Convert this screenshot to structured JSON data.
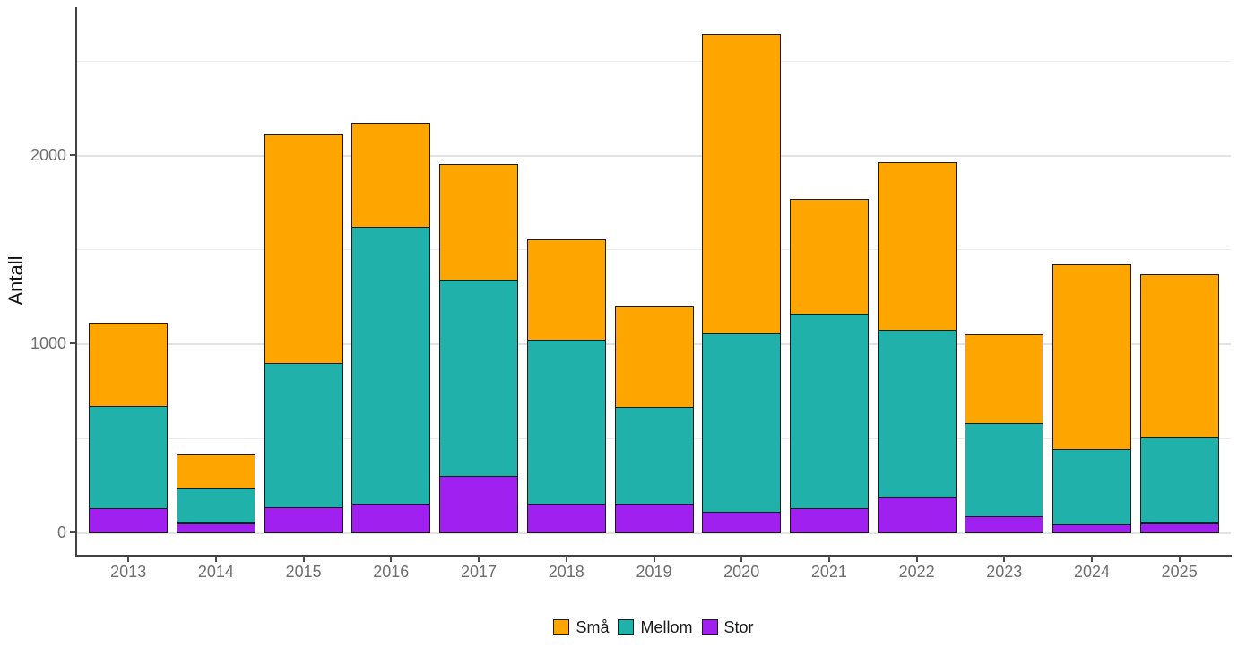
{
  "chart_data": {
    "type": "bar",
    "stacked": true,
    "title": "",
    "xlabel": "",
    "ylabel": "Antall",
    "categories": [
      "2013",
      "2014",
      "2015",
      "2016",
      "2017",
      "2018",
      "2019",
      "2020",
      "2021",
      "2022",
      "2023",
      "2024",
      "2025"
    ],
    "series": [
      {
        "name": "Stor",
        "color": "#A020F0",
        "values": [
          130,
          50,
          135,
          150,
          300,
          150,
          150,
          110,
          130,
          185,
          85,
          45,
          50
        ]
      },
      {
        "name": "Mellom",
        "color": "#20B2AA",
        "values": [
          540,
          185,
          765,
          1470,
          1040,
          870,
          515,
          945,
          1030,
          890,
          495,
          395,
          455
        ]
      },
      {
        "name": "Små",
        "color": "#FFA500",
        "values": [
          440,
          180,
          1210,
          550,
          610,
          535,
          530,
          1585,
          605,
          885,
          470,
          980,
          865
        ]
      }
    ],
    "stack_order_bottom_to_top": [
      "Stor",
      "Mellom",
      "Små"
    ],
    "totals": [
      1110,
      415,
      2110,
      2170,
      1950,
      1555,
      1195,
      2640,
      1765,
      1960,
      1050,
      1420,
      1370
    ],
    "y_axis": {
      "ticks": [
        {
          "value": 0,
          "label": "0"
        },
        {
          "value": 1000,
          "label": "1000"
        },
        {
          "value": 2000,
          "label": "2000"
        }
      ],
      "major_gridlines": [
        0,
        1000,
        2000
      ],
      "minor_gridlines": [
        500,
        1500,
        2500
      ],
      "range_shown": [
        0,
        2770
      ]
    },
    "legend": {
      "position": "bottom-center",
      "items": [
        "Små",
        "Mellom",
        "Stor"
      ]
    },
    "grid": "on",
    "bar_outline_color": "#1a1a1a"
  }
}
